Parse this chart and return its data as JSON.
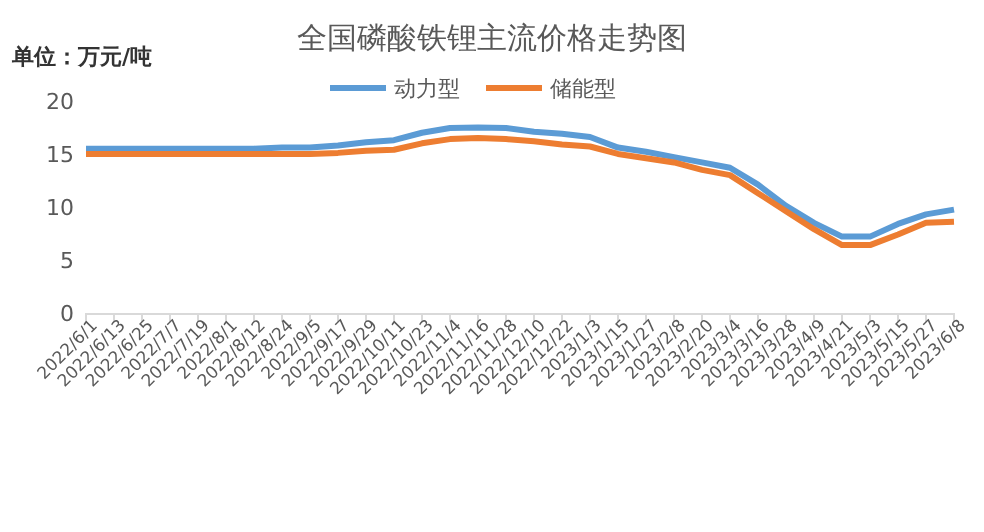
{
  "chart_data": {
    "type": "line",
    "title": "全国磷酸铁锂主流价格走势图",
    "ylabel": "单位：万元/吨",
    "categories": [
      "2022/6/1",
      "2022/6/13",
      "2022/6/25",
      "2022/7/7",
      "2022/7/19",
      "2022/8/1",
      "2022/8/12",
      "2022/8/24",
      "2022/9/5",
      "2022/9/17",
      "2022/9/29",
      "2022/10/11",
      "2022/10/23",
      "2022/11/4",
      "2022/11/16",
      "2022/11/28",
      "2022/12/10",
      "2022/12/22",
      "2023/1/3",
      "2023/1/15",
      "2023/1/27",
      "2023/2/8",
      "2023/2/20",
      "2023/3/4",
      "2023/3/16",
      "2023/3/28",
      "2023/4/9",
      "2023/4/21",
      "2023/5/3",
      "2023/5/15",
      "2023/5/27",
      "2023/6/8"
    ],
    "series": [
      {
        "name": "动力型",
        "color": "#5b9bd5",
        "values": [
          15.6,
          15.6,
          15.6,
          15.6,
          15.6,
          15.6,
          15.6,
          15.7,
          15.7,
          15.9,
          16.2,
          16.4,
          17.1,
          17.55,
          17.6,
          17.55,
          17.2,
          17.0,
          16.7,
          15.7,
          15.3,
          14.8,
          14.3,
          13.8,
          12.2,
          10.2,
          8.6,
          7.3,
          7.3,
          8.5,
          9.4,
          9.85
        ]
      },
      {
        "name": "储能型",
        "color": "#ed7d31",
        "values": [
          15.1,
          15.1,
          15.1,
          15.1,
          15.1,
          15.1,
          15.1,
          15.1,
          15.1,
          15.2,
          15.4,
          15.5,
          16.1,
          16.5,
          16.6,
          16.5,
          16.3,
          16.0,
          15.8,
          15.1,
          14.7,
          14.3,
          13.6,
          13.1,
          11.4,
          9.7,
          8.0,
          6.5,
          6.5,
          7.5,
          8.6,
          8.7
        ]
      }
    ],
    "ylim": [
      0,
      20
    ],
    "yticks": [
      0,
      5,
      10,
      15,
      20
    ],
    "legend": "top",
    "line_style": "solid",
    "marker": "none",
    "grid": false
  }
}
